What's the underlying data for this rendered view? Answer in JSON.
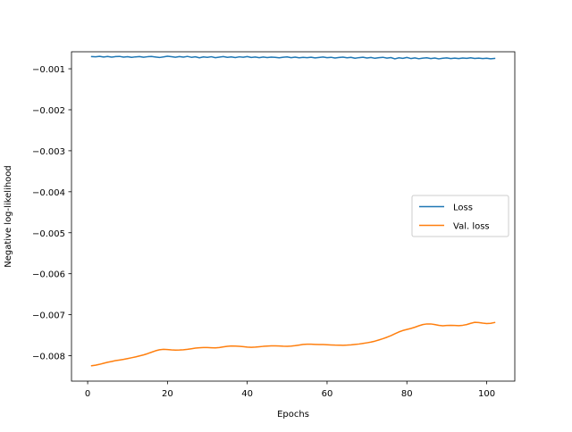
{
  "chart_data": {
    "type": "line",
    "title": "",
    "xlabel": "Epochs",
    "ylabel": "Negative log-likelihood",
    "xlim": [
      -4.05,
      107.05
    ],
    "ylim": [
      -0.00862,
      -0.000585
    ],
    "x_ticks": [
      0,
      20,
      40,
      60,
      80,
      100
    ],
    "x_tick_labels": [
      "0",
      "20",
      "40",
      "60",
      "80",
      "100"
    ],
    "y_ticks": [
      -0.001,
      -0.002,
      -0.003,
      -0.004,
      -0.005,
      -0.006,
      -0.007,
      -0.008
    ],
    "y_tick_labels": [
      "−0.001",
      "−0.002",
      "−0.003",
      "−0.004",
      "−0.005",
      "−0.006",
      "−0.007",
      "−0.008"
    ],
    "grid": false,
    "legend_position": "center-right",
    "x": [
      1,
      2,
      3,
      4,
      5,
      6,
      7,
      8,
      9,
      10,
      11,
      12,
      13,
      14,
      15,
      16,
      17,
      18,
      19,
      20,
      21,
      22,
      23,
      24,
      25,
      26,
      27,
      28,
      29,
      30,
      31,
      32,
      33,
      34,
      35,
      36,
      37,
      38,
      39,
      40,
      41,
      42,
      43,
      44,
      45,
      46,
      47,
      48,
      49,
      50,
      51,
      52,
      53,
      54,
      55,
      56,
      57,
      58,
      59,
      60,
      61,
      62,
      63,
      64,
      65,
      66,
      67,
      68,
      69,
      70,
      71,
      72,
      73,
      74,
      75,
      76,
      77,
      78,
      79,
      80,
      81,
      82,
      83,
      84,
      85,
      86,
      87,
      88,
      89,
      90,
      91,
      92,
      93,
      94,
      95,
      96,
      97,
      98,
      99,
      100,
      101,
      102
    ],
    "series": [
      {
        "name": "Loss",
        "color": "#1f77b4",
        "values": [
          -0.000702,
          -0.000708,
          -0.000696,
          -0.000712,
          -0.0007,
          -0.000715,
          -0.000703,
          -0.000698,
          -0.000716,
          -0.000705,
          -0.000722,
          -0.000709,
          -0.000703,
          -0.000718,
          -0.000706,
          -0.0007,
          -0.000713,
          -0.000725,
          -0.000711,
          -0.000695,
          -0.000704,
          -0.000718,
          -0.000702,
          -0.000715,
          -0.000698,
          -0.00072,
          -0.000708,
          -0.000732,
          -0.00071,
          -0.000722,
          -0.000706,
          -0.00073,
          -0.000715,
          -0.000701,
          -0.000722,
          -0.000711,
          -0.000726,
          -0.000709,
          -0.000719,
          -0.000703,
          -0.000724,
          -0.000713,
          -0.00073,
          -0.000712,
          -0.000727,
          -0.000715,
          -0.00072,
          -0.000733,
          -0.000718,
          -0.00071,
          -0.000729,
          -0.000716,
          -0.000733,
          -0.000722,
          -0.000728,
          -0.000719,
          -0.000735,
          -0.000723,
          -0.000714,
          -0.00073,
          -0.00072,
          -0.000738,
          -0.000725,
          -0.000716,
          -0.000733,
          -0.000721,
          -0.000742,
          -0.000728,
          -0.000719,
          -0.000737,
          -0.000724,
          -0.000744,
          -0.000729,
          -0.00072,
          -0.000741,
          -0.000727,
          -0.000758,
          -0.000732,
          -0.000745,
          -0.000724,
          -0.00075,
          -0.000735,
          -0.000755,
          -0.000741,
          -0.000732,
          -0.00075,
          -0.000738,
          -0.000758,
          -0.000744,
          -0.000735,
          -0.000752,
          -0.000741,
          -0.00075,
          -0.000738,
          -0.000746,
          -0.000733,
          -0.000749,
          -0.00074,
          -0.000752,
          -0.000744,
          -0.000756,
          -0.000748
        ]
      },
      {
        "name": "Val. loss",
        "color": "#ff7f0e",
        "values": [
          -0.008245,
          -0.00823,
          -0.00821,
          -0.008185,
          -0.00816,
          -0.00814,
          -0.00812,
          -0.008105,
          -0.00809,
          -0.00807,
          -0.00805,
          -0.00803,
          -0.008005,
          -0.00798,
          -0.00795,
          -0.007915,
          -0.00788,
          -0.007855,
          -0.007845,
          -0.00785,
          -0.007858,
          -0.007862,
          -0.00786,
          -0.007855,
          -0.007845,
          -0.00783,
          -0.007815,
          -0.007805,
          -0.0078,
          -0.0078,
          -0.007805,
          -0.007808,
          -0.0078,
          -0.007785,
          -0.00777,
          -0.007762,
          -0.007765,
          -0.00777,
          -0.00778,
          -0.00779,
          -0.007795,
          -0.00779,
          -0.007782,
          -0.007772,
          -0.007765,
          -0.00776,
          -0.00776,
          -0.007763,
          -0.007768,
          -0.00777,
          -0.007765,
          -0.007755,
          -0.00774,
          -0.007725,
          -0.007718,
          -0.00772,
          -0.007724,
          -0.007726,
          -0.007728,
          -0.007732,
          -0.007738,
          -0.007742,
          -0.007744,
          -0.007745,
          -0.007742,
          -0.007735,
          -0.007725,
          -0.007715,
          -0.0077,
          -0.007685,
          -0.007668,
          -0.007645,
          -0.007615,
          -0.007585,
          -0.00755,
          -0.00751,
          -0.007465,
          -0.00742,
          -0.007385,
          -0.00736,
          -0.007335,
          -0.007305,
          -0.00727,
          -0.00724,
          -0.007225,
          -0.007225,
          -0.00724,
          -0.00726,
          -0.00727,
          -0.007262,
          -0.007258,
          -0.007262,
          -0.007268,
          -0.007258,
          -0.00724,
          -0.00721,
          -0.007185,
          -0.00719,
          -0.007205,
          -0.007215,
          -0.00721,
          -0.00719
        ]
      }
    ]
  }
}
